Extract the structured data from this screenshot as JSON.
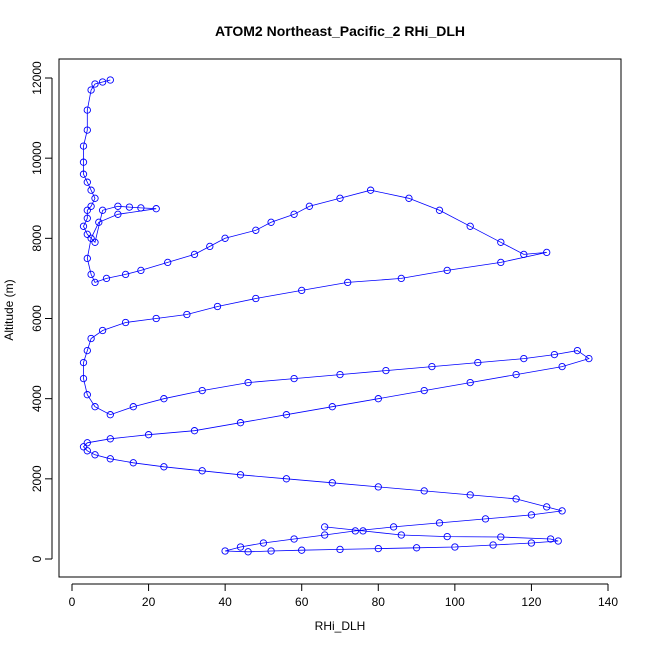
{
  "chart_data": {
    "type": "line",
    "title": "ATOM2 Northeast_Pacific_2 RHi_DLH",
    "xlabel": "RHi_DLH",
    "ylabel": "Altitude (m)",
    "xlim": [
      0,
      138
    ],
    "ylim": [
      0,
      12100
    ],
    "x_ticks": [
      0,
      20,
      40,
      60,
      80,
      100,
      120,
      140
    ],
    "y_ticks": [
      0,
      2000,
      4000,
      6000,
      8000,
      10000,
      12000
    ],
    "grid": false,
    "legend": "none",
    "style": {
      "marker": "open-circle",
      "line": true,
      "color": "#0000ff"
    },
    "series": [
      {
        "x": [
          10,
          8,
          6,
          5,
          4,
          4,
          3,
          3,
          3,
          4,
          5,
          6,
          5,
          4,
          4,
          3,
          4,
          6,
          8,
          12,
          15,
          18,
          22,
          12,
          7,
          5,
          4,
          5,
          6,
          9,
          14,
          18,
          25,
          32,
          36,
          40,
          48,
          52,
          58,
          62,
          70,
          78,
          88,
          96,
          104,
          112,
          118,
          124,
          112,
          98,
          86,
          72,
          60,
          48,
          38,
          30,
          22,
          14,
          8,
          5,
          4,
          3,
          3,
          4,
          6,
          10,
          16,
          24,
          34,
          46,
          58,
          70,
          82,
          94,
          106,
          118,
          126,
          132,
          135,
          128,
          116,
          104,
          92,
          80,
          68,
          56,
          44,
          32,
          20,
          10,
          4,
          3,
          4,
          6,
          10,
          16,
          24,
          34,
          44,
          56,
          68,
          80,
          92,
          104,
          116,
          124,
          128,
          120,
          108,
          96,
          84,
          74,
          66,
          58,
          50,
          44,
          40,
          46,
          52,
          60,
          70,
          80,
          90,
          100,
          110,
          120,
          127,
          125,
          112,
          98,
          86,
          76,
          66
        ],
        "y": [
          11950,
          11900,
          11850,
          11700,
          11200,
          10700,
          10300,
          9900,
          9600,
          9400,
          9200,
          9000,
          8800,
          8700,
          8500,
          8300,
          8100,
          7900,
          8700,
          8800,
          8780,
          8760,
          8740,
          8600,
          8400,
          8000,
          7500,
          7100,
          6900,
          7000,
          7100,
          7200,
          7400,
          7600,
          7800,
          8000,
          8200,
          8400,
          8600,
          8800,
          9000,
          9200,
          9000,
          8700,
          8300,
          7900,
          7600,
          7650,
          7400,
          7200,
          7000,
          6900,
          6700,
          6500,
          6300,
          6100,
          6000,
          5900,
          5700,
          5500,
          5200,
          4900,
          4500,
          4100,
          3800,
          3600,
          3800,
          4000,
          4200,
          4400,
          4500,
          4600,
          4700,
          4800,
          4900,
          5000,
          5100,
          5200,
          5000,
          4800,
          4600,
          4400,
          4200,
          4000,
          3800,
          3600,
          3400,
          3200,
          3100,
          3000,
          2900,
          2800,
          2700,
          2600,
          2500,
          2400,
          2300,
          2200,
          2100,
          2000,
          1900,
          1800,
          1700,
          1600,
          1500,
          1300,
          1200,
          1100,
          1000,
          900,
          800,
          700,
          600,
          500,
          400,
          300,
          200,
          180,
          200,
          220,
          240,
          260,
          280,
          300,
          350,
          400,
          450,
          500,
          550,
          560,
          600,
          700,
          800
        ]
      }
    ]
  }
}
